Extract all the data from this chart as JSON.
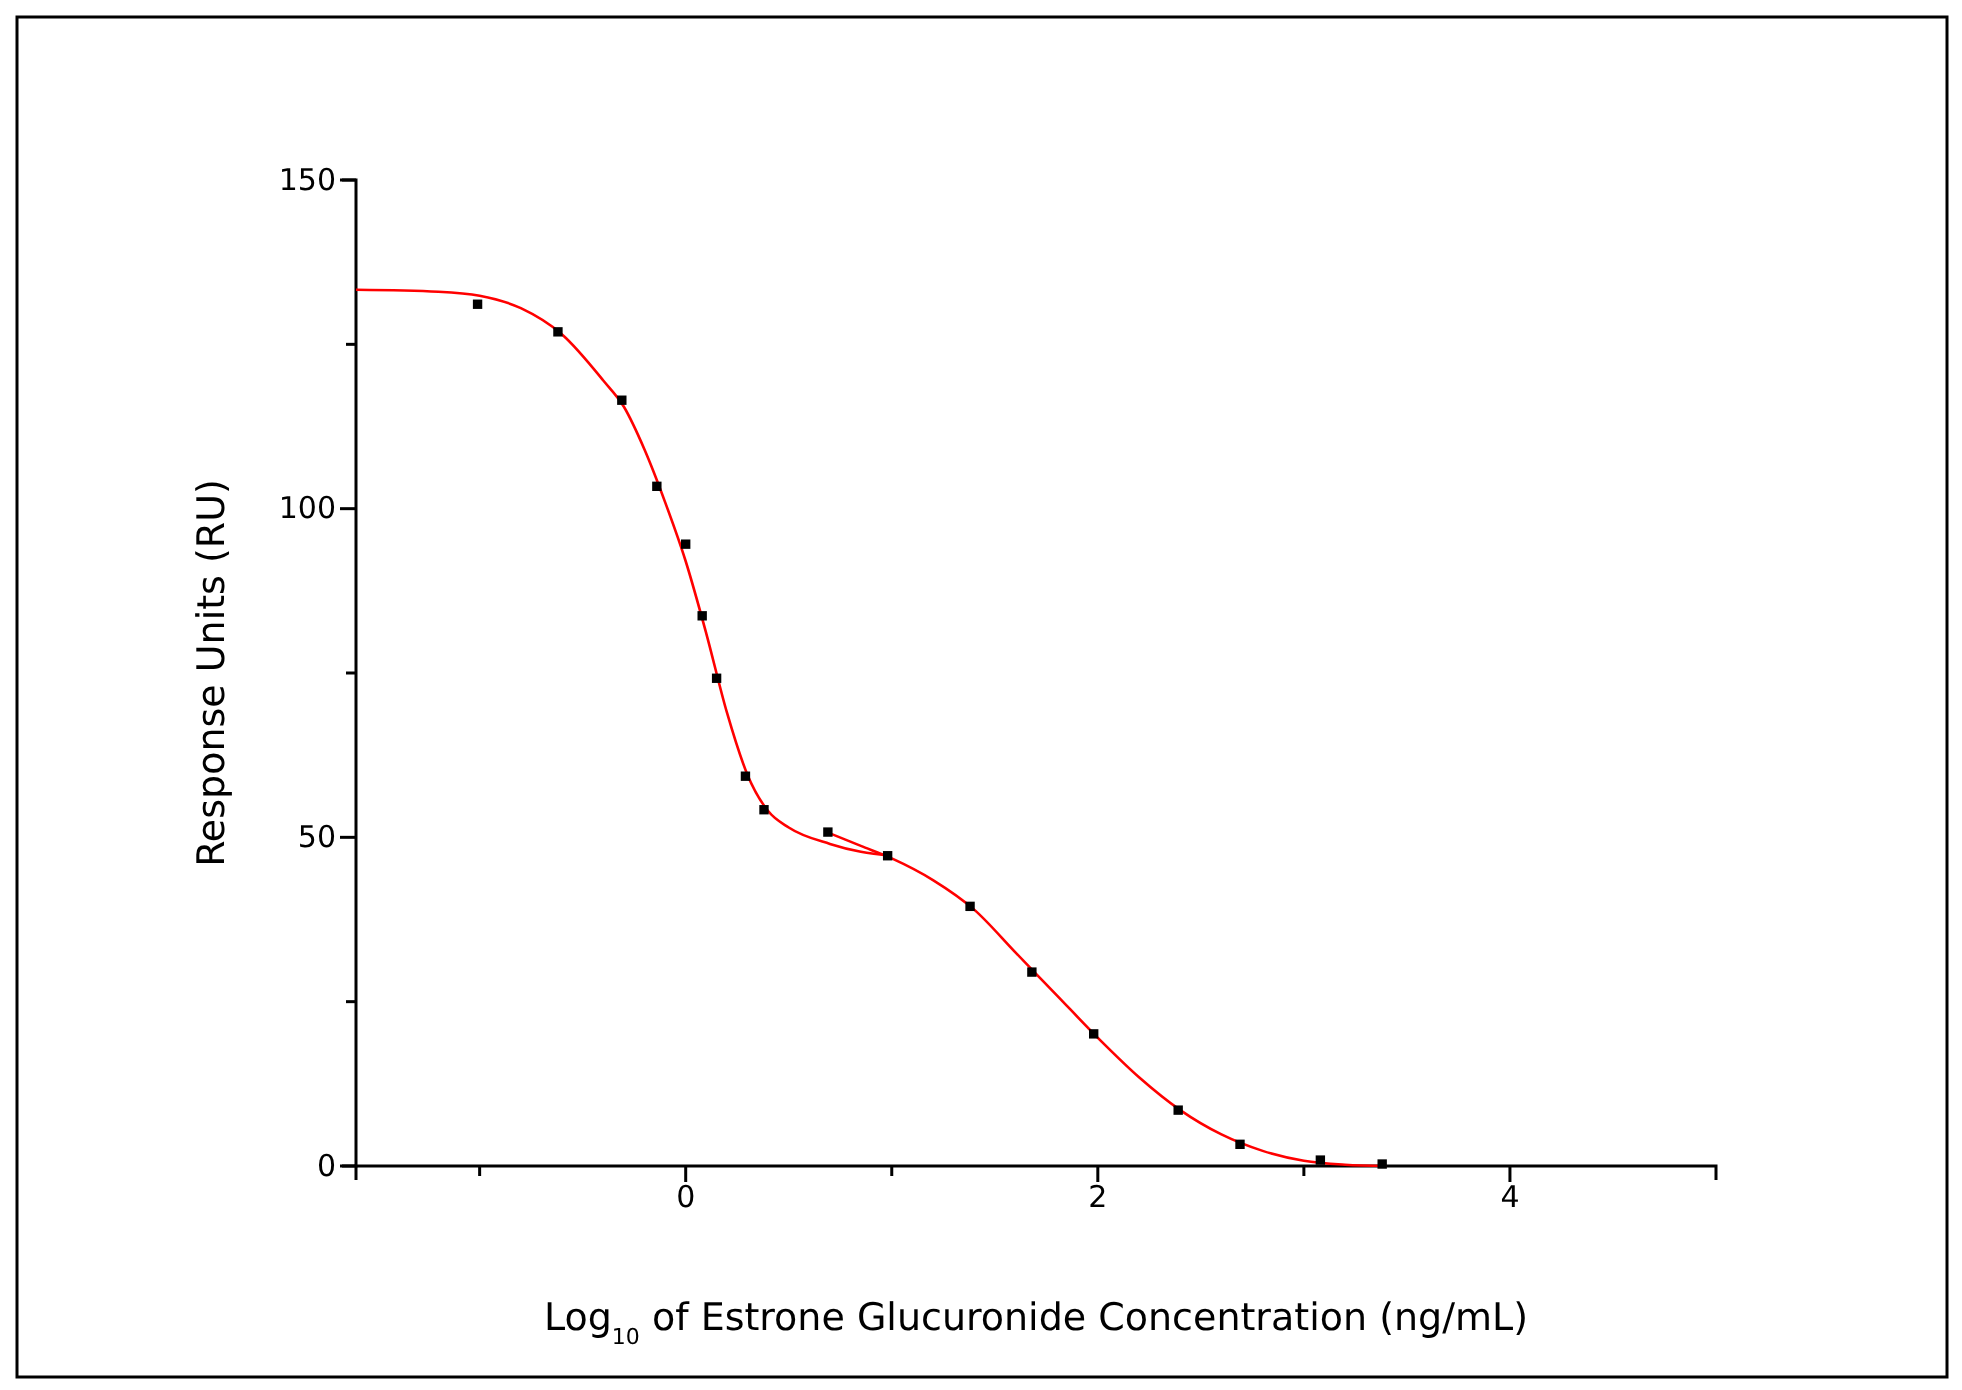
{
  "chart_data": {
    "type": "scatter",
    "xlabel": "Log$_{10}$ of Estrone Glucuronide Concentration (ng/mL)",
    "ylabel": "Response Units (RU)",
    "xlim": [
      -1.6,
      5
    ],
    "ylim": [
      0,
      150
    ],
    "xticks": [
      {
        "value": -1,
        "label": null
      },
      0,
      {
        "value": 1,
        "label": null
      },
      2,
      {
        "value": 3,
        "label": null
      },
      4
    ],
    "yticks": [
      0,
      {
        "value": 25,
        "label": null
      },
      50,
      {
        "value": 75,
        "label": null
      },
      100,
      {
        "value": 125,
        "label": null
      },
      150
    ],
    "grid": false,
    "marker": "square",
    "series": [
      {
        "color": "#000000",
        "x": [
          -1.01,
          -0.62,
          -0.31,
          -0.14,
          0,
          0.08,
          0.15,
          0.29,
          0.38,
          0.69,
          0.98,
          1.38,
          1.68,
          1.98,
          2.39,
          2.69,
          3.08,
          3.38
        ],
        "values": [
          131.1,
          126.9,
          116.5,
          103.4,
          94.6,
          83.7,
          74.2,
          59.3,
          54.2,
          50.8,
          47.2,
          39.5,
          29.5,
          20.1,
          8.5,
          3.3,
          0.9,
          0.3
        ]
      },
      {
        "type": "line",
        "color": "#ff0000",
        "marker": "none",
        "line_style": "solid",
        "x": [
          -1.6,
          -1.2,
          -1.0,
          -0.8,
          -0.6,
          -0.4,
          -0.3,
          -0.2,
          -0.1,
          0,
          0.1,
          0.2,
          0.3,
          0.4,
          0.5,
          0.7,
          0.85,
          1.0
        ],
        "values": [
          133.3,
          133,
          132.4,
          130.5,
          126.5,
          119.5,
          115.5,
          109,
          101,
          92,
          81,
          69,
          59.5,
          54,
          51.5,
          49,
          47.8,
          47.2
        ]
      },
      {
        "type": "line",
        "color": "#ff0000",
        "marker": "none",
        "line_style": "solid",
        "x": [
          0.7,
          0.85,
          1.0,
          1.2,
          1.4,
          1.6,
          1.8,
          2.0,
          2.2,
          2.4,
          2.6,
          2.8,
          3.0,
          3.2,
          3.4
        ],
        "values": [
          50.6,
          48.7,
          46.8,
          43.5,
          39,
          32.5,
          26,
          19.5,
          13.5,
          8.5,
          4.8,
          2.3,
          0.8,
          0.2,
          0
        ]
      }
    ]
  }
}
